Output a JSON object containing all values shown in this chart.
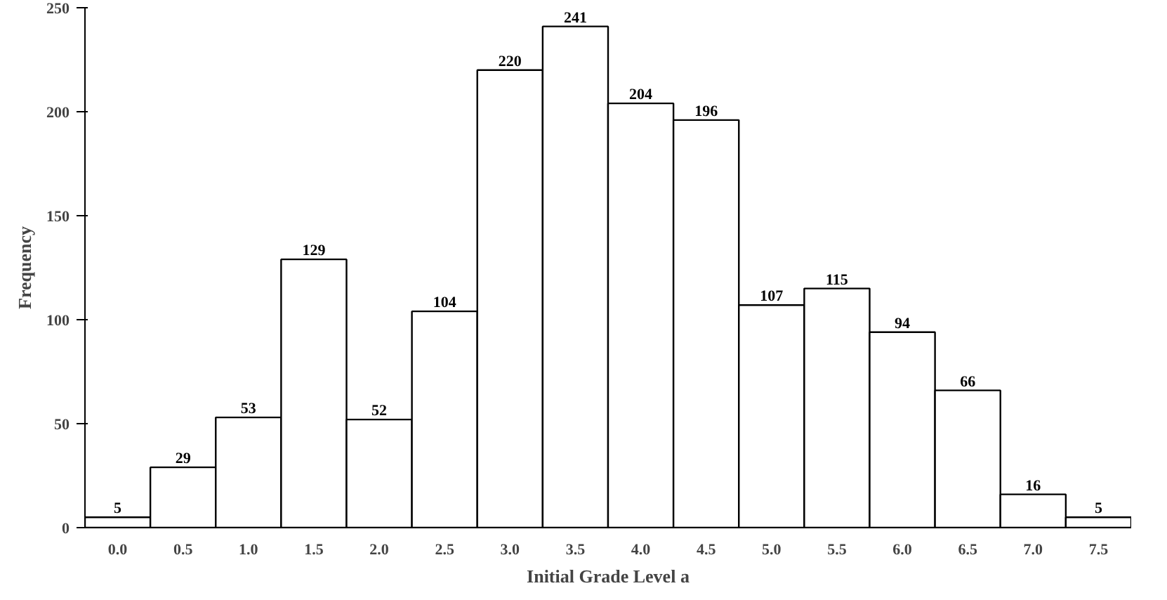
{
  "chart_data": {
    "type": "bar",
    "xlabel": "Initial Grade Level a",
    "ylabel": "Frequency",
    "categories": [
      "0.0",
      "0.5",
      "1.0",
      "1.5",
      "2.0",
      "2.5",
      "3.0",
      "3.5",
      "4.0",
      "4.5",
      "5.0",
      "5.5",
      "6.0",
      "6.5",
      "7.0",
      "7.5"
    ],
    "values": [
      5,
      29,
      53,
      129,
      52,
      104,
      220,
      241,
      204,
      196,
      107,
      115,
      94,
      66,
      16,
      5
    ],
    "color": "#ffffff",
    "ylim": [
      0,
      250
    ],
    "yticks": [
      0,
      50,
      100,
      150,
      200,
      250
    ],
    "data_labels": true,
    "grid": false
  }
}
